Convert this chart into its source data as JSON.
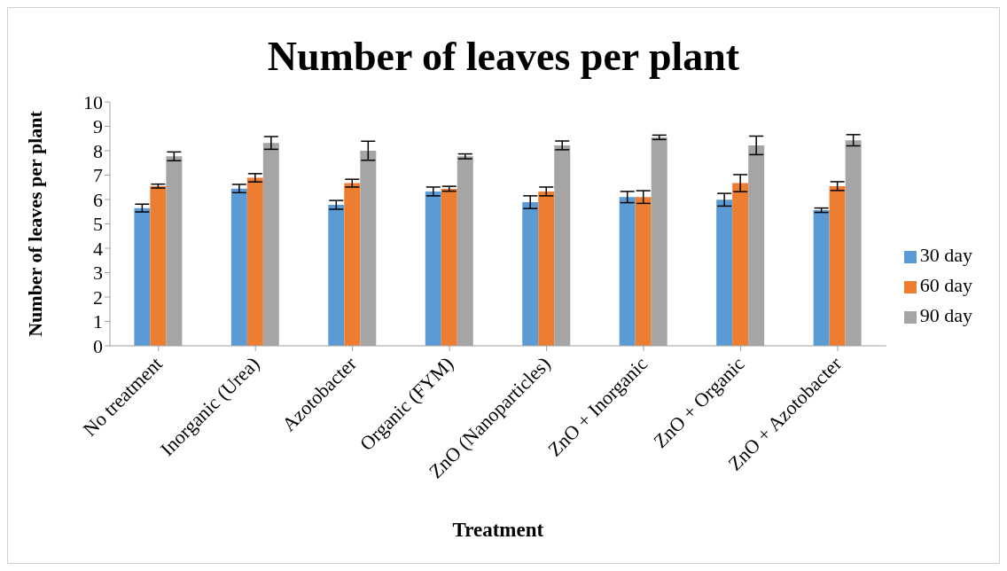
{
  "chart_data": {
    "type": "bar",
    "title": "Number of leaves per plant",
    "xlabel": "Treatment",
    "ylabel": "Number of leaves per plant",
    "categories": [
      "No treatment",
      "Inorganic (Urea)",
      "Azotobacter",
      "Organic (FYM)",
      "ZnO (Nanoparticles)",
      "ZnO + Inorganic",
      "ZnO + Organic",
      "ZnO + Azotobacter"
    ],
    "series": [
      {
        "name": "30 day",
        "color": "#5b9bd5",
        "values": [
          5.65,
          6.45,
          5.78,
          6.33,
          5.89,
          6.1,
          5.99,
          5.56
        ],
        "errors": [
          0.16,
          0.17,
          0.18,
          0.18,
          0.26,
          0.23,
          0.26,
          0.09
        ]
      },
      {
        "name": "60 day",
        "color": "#ed7d31",
        "values": [
          6.55,
          6.89,
          6.67,
          6.44,
          6.33,
          6.1,
          6.67,
          6.55
        ],
        "errors": [
          0.08,
          0.17,
          0.16,
          0.1,
          0.18,
          0.26,
          0.35,
          0.18
        ]
      },
      {
        "name": "90 day",
        "color": "#a5a5a5",
        "values": [
          7.77,
          8.32,
          8.0,
          7.77,
          8.22,
          8.55,
          8.22,
          8.43
        ],
        "errors": [
          0.18,
          0.26,
          0.39,
          0.1,
          0.18,
          0.09,
          0.38,
          0.23
        ]
      }
    ],
    "ylim": [
      0,
      10
    ],
    "yticks": [
      0,
      1,
      2,
      3,
      4,
      5,
      6,
      7,
      8,
      9,
      10
    ],
    "grid": false,
    "legend": "right"
  }
}
